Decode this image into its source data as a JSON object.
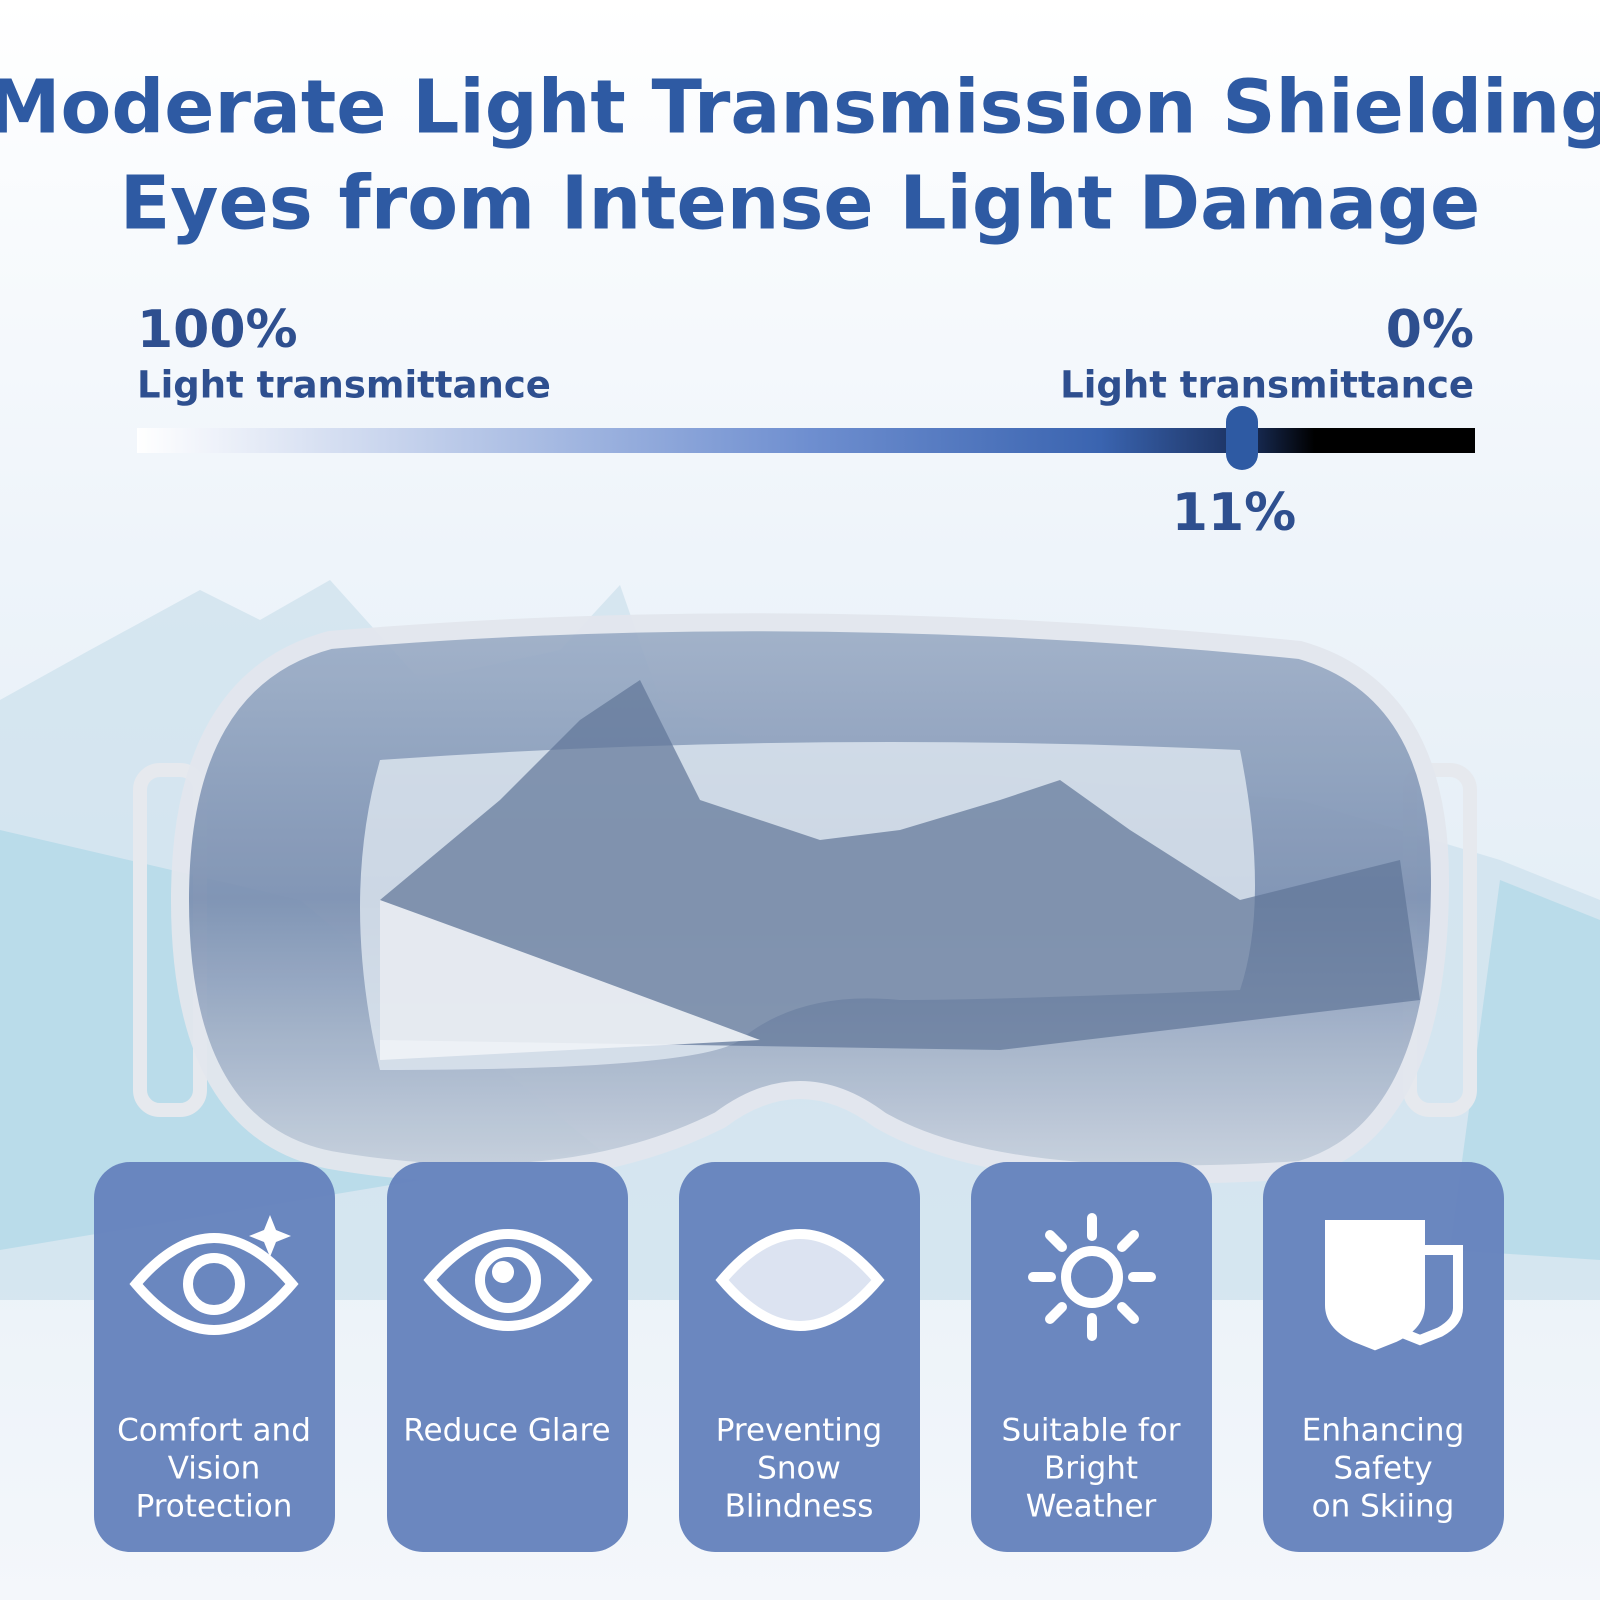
{
  "header": {
    "title_lines": [
      "Moderate Light Transmission Shielding",
      "Eyes from Intense Light Damage"
    ]
  },
  "scale": {
    "left_value": "100%",
    "left_label": "Light transmittance",
    "right_value": "0%",
    "right_label": "Light transmittance",
    "marker_value": "11%"
  },
  "features": [
    {
      "lines": [
        "Comfort and",
        "Vision",
        "Protection"
      ]
    },
    {
      "lines": [
        "Reduce Glare"
      ]
    },
    {
      "lines": [
        "Preventing",
        "Snow",
        "Blindness"
      ]
    },
    {
      "lines": [
        "Suitable for",
        "Bright",
        "Weather"
      ]
    },
    {
      "lines": [
        "Enhancing",
        "Safety",
        "on Skiing"
      ]
    }
  ]
}
